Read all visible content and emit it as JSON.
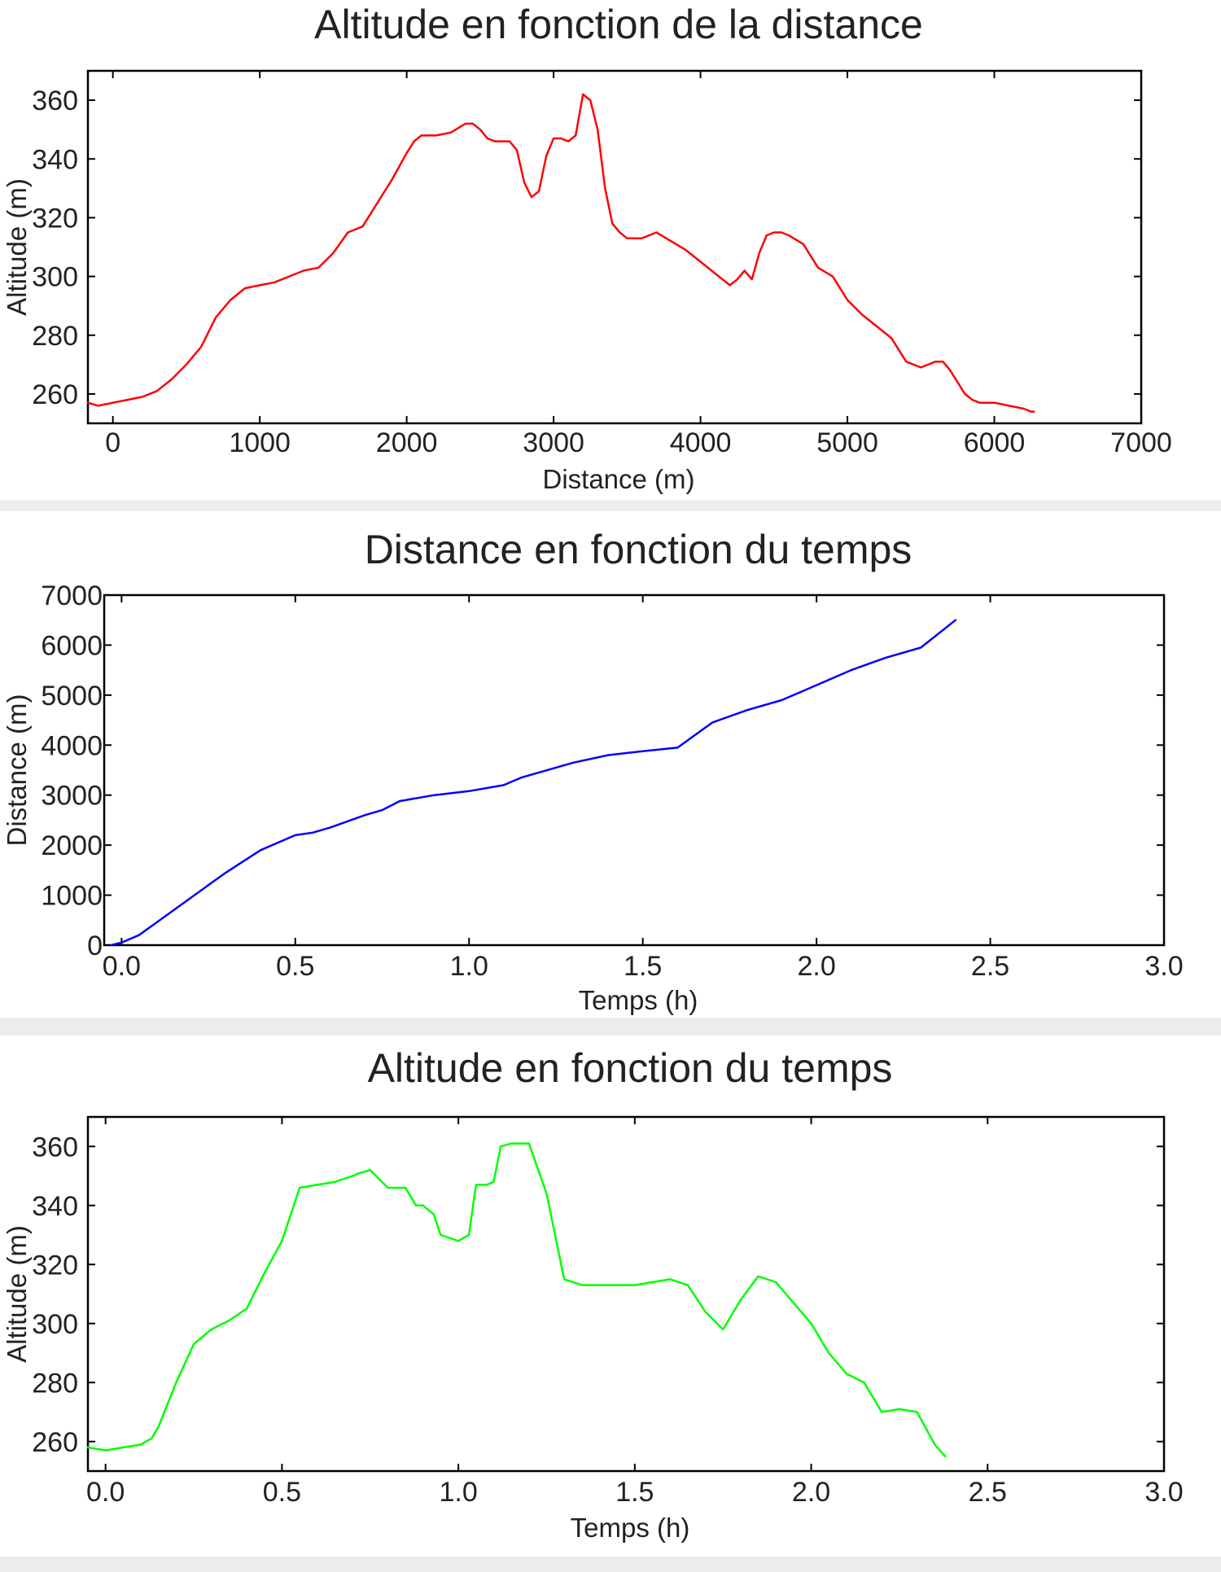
{
  "chart_data": [
    {
      "type": "line",
      "title": "Altitude en fonction de la distance",
      "xlabel": "Distance (m)",
      "ylabel": "Altitude (m)",
      "xlim": [
        -170,
        7000
      ],
      "ylim": [
        250,
        370
      ],
      "xticks": [
        0,
        1000,
        2000,
        3000,
        4000,
        5000,
        6000,
        7000
      ],
      "yticks": [
        260,
        280,
        300,
        320,
        340,
        360
      ],
      "xtick_labels": [
        "0",
        "1000",
        "2000",
        "3000",
        "4000",
        "5000",
        "6000",
        "7000"
      ],
      "ytick_labels": [
        "260",
        "280",
        "300",
        "320",
        "340",
        "360"
      ],
      "grid": false,
      "series": [
        {
          "color": "#ff0000",
          "x": [
            -170,
            -100,
            0,
            100,
            200,
            300,
            400,
            500,
            600,
            700,
            800,
            900,
            1000,
            1100,
            1200,
            1300,
            1400,
            1500,
            1600,
            1700,
            1800,
            1900,
            2000,
            2050,
            2100,
            2200,
            2300,
            2400,
            2450,
            2500,
            2550,
            2600,
            2700,
            2750,
            2800,
            2850,
            2900,
            2950,
            3000,
            3050,
            3100,
            3150,
            3200,
            3250,
            3300,
            3350,
            3400,
            3450,
            3500,
            3550,
            3600,
            3700,
            3800,
            3900,
            4000,
            4100,
            4200,
            4250,
            4300,
            4350,
            4400,
            4450,
            4500,
            4550,
            4600,
            4700,
            4800,
            4900,
            5000,
            5100,
            5200,
            5300,
            5400,
            5500,
            5600,
            5650,
            5700,
            5750,
            5800,
            5850,
            5900,
            5950,
            6000,
            6100,
            6200,
            6250,
            6270
          ],
          "y": [
            257,
            256,
            257,
            258,
            259,
            261,
            265,
            270,
            276,
            286,
            292,
            296,
            297,
            298,
            300,
            302,
            303,
            308,
            315,
            317,
            325,
            333,
            342,
            346,
            348,
            348,
            349,
            352,
            352,
            350,
            347,
            346,
            346,
            343,
            332,
            327,
            329,
            341,
            347,
            347,
            346,
            348,
            362,
            360,
            350,
            330,
            318,
            315,
            313,
            313,
            313,
            315,
            312,
            309,
            305,
            301,
            297,
            299,
            302,
            299,
            308,
            314,
            315,
            315,
            314,
            311,
            303,
            300,
            292,
            287,
            283,
            279,
            271,
            269,
            271,
            271,
            268,
            264,
            260,
            258,
            257,
            257,
            257,
            256,
            255,
            254,
            254
          ]
        }
      ]
    },
    {
      "type": "line",
      "title": "Distance en fonction du temps",
      "xlabel": "Temps (h)",
      "ylabel": "Distance (m)",
      "xlim": [
        -0.05,
        3.0
      ],
      "ylim": [
        0,
        7000
      ],
      "xticks": [
        0.0,
        0.5,
        1.0,
        1.5,
        2.0,
        2.5,
        3.0
      ],
      "yticks": [
        0,
        1000,
        2000,
        3000,
        4000,
        5000,
        6000,
        7000
      ],
      "xtick_labels": [
        "0.0",
        "0.5",
        "1.0",
        "1.5",
        "2.0",
        "2.5",
        "3.0"
      ],
      "ytick_labels": [
        "0",
        "1000",
        "2000",
        "3000",
        "4000",
        "5000",
        "6000",
        "7000"
      ],
      "grid": false,
      "series": [
        {
          "color": "#0000ff",
          "x": [
            -0.03,
            0.0,
            0.05,
            0.1,
            0.2,
            0.3,
            0.4,
            0.5,
            0.55,
            0.6,
            0.7,
            0.75,
            0.8,
            0.9,
            1.0,
            1.1,
            1.15,
            1.2,
            1.3,
            1.4,
            1.5,
            1.6,
            1.7,
            1.8,
            1.9,
            2.0,
            2.1,
            2.2,
            2.3,
            2.4
          ],
          "y": [
            0,
            50,
            200,
            450,
            950,
            1450,
            1900,
            2200,
            2250,
            2350,
            2600,
            2700,
            2880,
            3000,
            3080,
            3200,
            3350,
            3450,
            3650,
            3800,
            3880,
            3950,
            4450,
            4700,
            4900,
            5200,
            5500,
            5750,
            5950,
            6500
          ]
        }
      ]
    },
    {
      "type": "line",
      "title": "Altitude en fonction du temps",
      "xlabel": "Temps (h)",
      "ylabel": "Altitude (m)",
      "xlim": [
        -0.05,
        3.0
      ],
      "ylim": [
        250,
        370
      ],
      "xticks": [
        0.0,
        0.5,
        1.0,
        1.5,
        2.0,
        2.5,
        3.0
      ],
      "yticks": [
        260,
        280,
        300,
        320,
        340,
        360
      ],
      "xtick_labels": [
        "0.0",
        "0.5",
        "1.0",
        "1.5",
        "2.0",
        "2.5",
        "3.0"
      ],
      "ytick_labels": [
        "260",
        "280",
        "300",
        "320",
        "340",
        "360"
      ],
      "grid": false,
      "series": [
        {
          "color": "#00ff00",
          "x": [
            -0.05,
            0.0,
            0.05,
            0.1,
            0.13,
            0.15,
            0.2,
            0.25,
            0.3,
            0.35,
            0.4,
            0.45,
            0.5,
            0.55,
            0.6,
            0.65,
            0.7,
            0.72,
            0.75,
            0.8,
            0.85,
            0.88,
            0.9,
            0.93,
            0.95,
            1.0,
            1.03,
            1.05,
            1.08,
            1.1,
            1.12,
            1.15,
            1.2,
            1.25,
            1.3,
            1.35,
            1.4,
            1.5,
            1.6,
            1.65,
            1.7,
            1.75,
            1.8,
            1.85,
            1.9,
            2.0,
            2.05,
            2.1,
            2.15,
            2.2,
            2.25,
            2.3,
            2.35,
            2.38
          ],
          "y": [
            258,
            257,
            258,
            259,
            261,
            265,
            280,
            293,
            298,
            301,
            305,
            317,
            328,
            346,
            347,
            348,
            350,
            351,
            352,
            346,
            346,
            340,
            340,
            337,
            330,
            328,
            330,
            347,
            347,
            348,
            360,
            361,
            361,
            344,
            315,
            313,
            313,
            313,
            315,
            313,
            304,
            298,
            308,
            316,
            314,
            300,
            290,
            283,
            280,
            270,
            271,
            270,
            259,
            255
          ]
        }
      ]
    }
  ]
}
